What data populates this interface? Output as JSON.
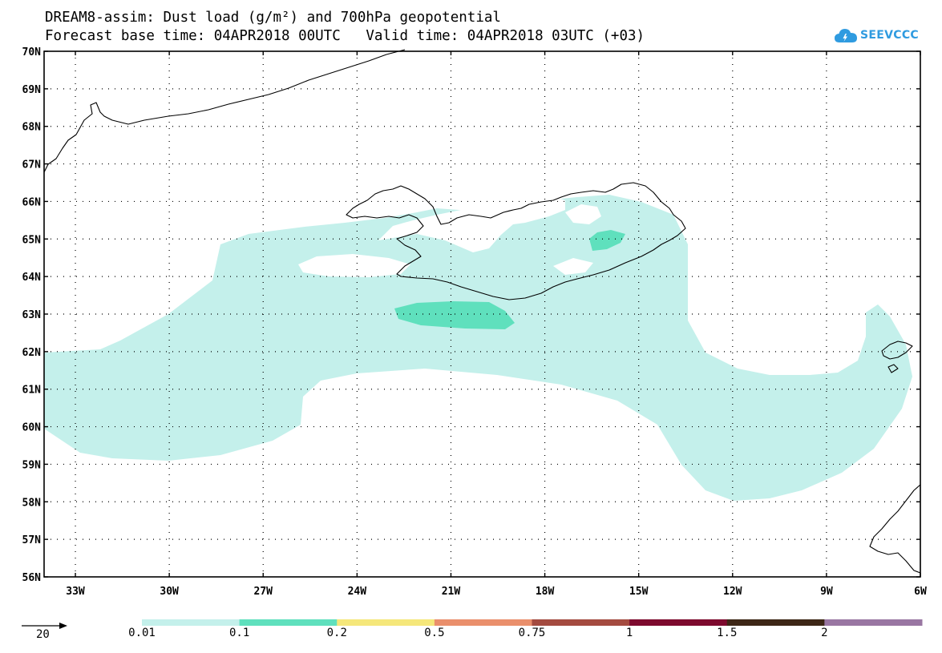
{
  "title": {
    "line1": "DREAM8-assim: Dust load (g/m²) and 700hPa geopotential",
    "line2": "Forecast base time: 04APR2018 00UTC   Valid time: 04APR2018 03UTC (+03)"
  },
  "logo": {
    "text": "SEEVCCC",
    "icon": "cloud-icon",
    "color": "#2f9be0"
  },
  "map_extent": {
    "lon": [
      -34,
      -6
    ],
    "lat": [
      56,
      70
    ]
  },
  "axes": {
    "lat_labels": [
      "70N",
      "69N",
      "68N",
      "67N",
      "66N",
      "65N",
      "64N",
      "63N",
      "62N",
      "61N",
      "60N",
      "59N",
      "58N",
      "57N",
      "56N"
    ],
    "lon_labels": [
      "33W",
      "30W",
      "27W",
      "24W",
      "21W",
      "18W",
      "15W",
      "12W",
      "9W",
      "6W"
    ]
  },
  "colorbar": {
    "labels": [
      "0.01",
      "0.1",
      "0.2",
      "0.5",
      "0.75",
      "1",
      "1.5",
      "2"
    ],
    "colors": [
      "#c4f0eb",
      "#5fe0bd",
      "#f5e77a",
      "#ea8f6c",
      "#a44b40",
      "#7d0a2e",
      "#3d2716",
      "#9976a2"
    ]
  },
  "wind_ref": {
    "value": "20"
  },
  "chart_data": {
    "type": "heatmap",
    "variable": "Dust load (g/m²)",
    "levels": [
      0.01,
      0.1,
      0.2,
      0.5,
      0.75,
      1,
      1.5,
      2
    ],
    "grid": true,
    "regions": [
      {
        "name": "0.01-0.1",
        "color": "#c4f0eb",
        "extent": "33W-6W, 58N-66N (broad band over North Atlantic and Iceland)"
      },
      {
        "name": "0.1-0.2 south of Iceland",
        "color": "#5fe0bd",
        "center": [
          -21,
          63.0
        ]
      },
      {
        "name": "0.1-0.2 central Iceland",
        "color": "#5fe0bd",
        "center": [
          -16.0,
          65.0
        ]
      }
    ]
  }
}
